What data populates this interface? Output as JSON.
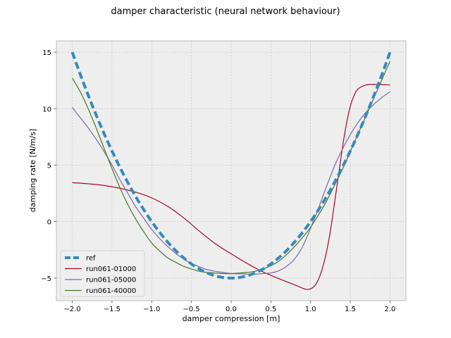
{
  "chart_data": {
    "type": "line",
    "title": "damper characteristic (neural network behaviour)",
    "xlabel": "damper compression [m]",
    "ylabel": "damping rate [N/m/s]",
    "xlim": [
      -2.2,
      2.2
    ],
    "ylim": [
      -7.0,
      16.0
    ],
    "xticks": [
      -2.0,
      -1.5,
      -1.0,
      -0.5,
      0.0,
      0.5,
      1.0,
      1.5,
      2.0
    ],
    "xtick_labels": [
      "−2.0",
      "−1.5",
      "−1.0",
      "−0.5",
      "0.0",
      "0.5",
      "1.0",
      "1.5",
      "2.0"
    ],
    "yticks": [
      -5,
      0,
      5,
      10,
      15
    ],
    "ytick_labels": [
      "−5",
      "0",
      "5",
      "10",
      "15"
    ],
    "grid": true,
    "legend_position": "lower-left",
    "series": [
      {
        "name": "ref",
        "color": "#348ABD",
        "style": "dashed",
        "x": [
          -2.0,
          -1.9,
          -1.8,
          -1.7,
          -1.6,
          -1.5,
          -1.4,
          -1.3,
          -1.2,
          -1.1,
          -1.0,
          -0.9,
          -0.8,
          -0.7,
          -0.6,
          -0.5,
          -0.4,
          -0.3,
          -0.2,
          -0.1,
          0.0,
          0.1,
          0.2,
          0.3,
          0.4,
          0.5,
          0.6,
          0.7,
          0.8,
          0.9,
          1.0,
          1.1,
          1.2,
          1.3,
          1.4,
          1.5,
          1.6,
          1.7,
          1.8,
          1.9,
          2.0
        ],
        "y": [
          15.0,
          12.61,
          10.39,
          8.34,
          6.46,
          4.75,
          3.21,
          1.84,
          0.64,
          -0.39,
          -1.25,
          -1.94,
          -2.46,
          -2.81,
          -2.99,
          -3.0,
          -4.36,
          -4.64,
          -4.84,
          -4.96,
          -5.0,
          -4.96,
          -4.84,
          -4.64,
          -4.36,
          -4.0,
          -3.56,
          -3.04,
          -2.44,
          -1.76,
          -1.0,
          -0.16,
          0.76,
          1.76,
          2.84,
          4.0,
          6.39,
          8.34,
          10.39,
          12.61,
          15.0
        ]
      },
      {
        "name": "run061-01000",
        "color": "#A60628",
        "style": "solid",
        "x": [
          -2.0,
          -1.8,
          -1.6,
          -1.4,
          -1.2,
          -1.0,
          -0.8,
          -0.6,
          -0.4,
          -0.2,
          0.0,
          0.2,
          0.4,
          0.6,
          0.8,
          0.9,
          0.95,
          1.0,
          1.05,
          1.1,
          1.15,
          1.2,
          1.25,
          1.3,
          1.35,
          1.4,
          1.45,
          1.5,
          1.55,
          1.6,
          1.7,
          1.8,
          1.9,
          2.0
        ],
        "y": [
          3.45,
          3.35,
          3.2,
          2.95,
          2.6,
          2.1,
          1.35,
          0.35,
          -0.85,
          -1.95,
          -2.85,
          -3.7,
          -4.45,
          -5.05,
          -5.6,
          -5.9,
          -6.0,
          -5.95,
          -5.7,
          -5.1,
          -4.1,
          -2.7,
          -0.8,
          1.6,
          4.0,
          6.5,
          8.6,
          10.2,
          11.2,
          11.75,
          12.1,
          12.15,
          12.12,
          12.1
        ]
      },
      {
        "name": "run061-05000",
        "color": "#7A68A6",
        "style": "solid",
        "x": [
          -2.0,
          -1.9,
          -1.8,
          -1.7,
          -1.6,
          -1.5,
          -1.4,
          -1.3,
          -1.2,
          -1.1,
          -1.0,
          -0.9,
          -0.8,
          -0.7,
          -0.6,
          -0.5,
          -0.4,
          -0.3,
          -0.2,
          -0.1,
          0.0,
          0.1,
          0.2,
          0.3,
          0.4,
          0.5,
          0.6,
          0.7,
          0.8,
          0.9,
          1.0,
          1.1,
          1.2,
          1.3,
          1.4,
          1.5,
          1.6,
          1.7,
          1.8,
          1.9,
          2.0
        ],
        "y": [
          10.1,
          9.2,
          8.3,
          7.3,
          6.2,
          5.0,
          3.7,
          2.5,
          1.3,
          0.3,
          -0.7,
          -1.5,
          -2.2,
          -2.8,
          -3.3,
          -3.7,
          -4.0,
          -4.25,
          -4.4,
          -4.5,
          -4.6,
          -4.62,
          -4.65,
          -4.65,
          -4.6,
          -4.55,
          -4.35,
          -3.95,
          -3.3,
          -2.2,
          -0.6,
          1.2,
          3.1,
          4.9,
          6.4,
          7.7,
          8.8,
          9.7,
          10.4,
          11.0,
          11.5
        ]
      },
      {
        "name": "run061-40000",
        "color": "#467821",
        "style": "solid",
        "x": [
          -2.0,
          -1.9,
          -1.8,
          -1.7,
          -1.6,
          -1.5,
          -1.4,
          -1.3,
          -1.2,
          -1.1,
          -1.0,
          -0.9,
          -0.8,
          -0.7,
          -0.6,
          -0.5,
          -0.4,
          -0.3,
          -0.2,
          -0.1,
          0.0,
          0.1,
          0.2,
          0.3,
          0.4,
          0.5,
          0.6,
          0.7,
          0.8,
          0.9,
          1.0,
          1.1,
          1.2,
          1.3,
          1.4,
          1.5,
          1.6,
          1.7,
          1.8,
          1.9,
          2.0
        ],
        "y": [
          12.7,
          11.5,
          10.0,
          8.3,
          6.5,
          4.7,
          3.0,
          1.5,
          0.2,
          -0.9,
          -1.9,
          -2.6,
          -3.2,
          -3.6,
          -3.95,
          -4.2,
          -4.4,
          -4.5,
          -4.55,
          -4.6,
          -4.6,
          -4.55,
          -4.5,
          -4.4,
          -4.2,
          -3.9,
          -3.5,
          -2.9,
          -2.2,
          -1.4,
          -0.5,
          0.6,
          1.8,
          3.2,
          4.6,
          6.2,
          7.8,
          9.4,
          11.0,
          12.6,
          14.2
        ]
      }
    ]
  }
}
